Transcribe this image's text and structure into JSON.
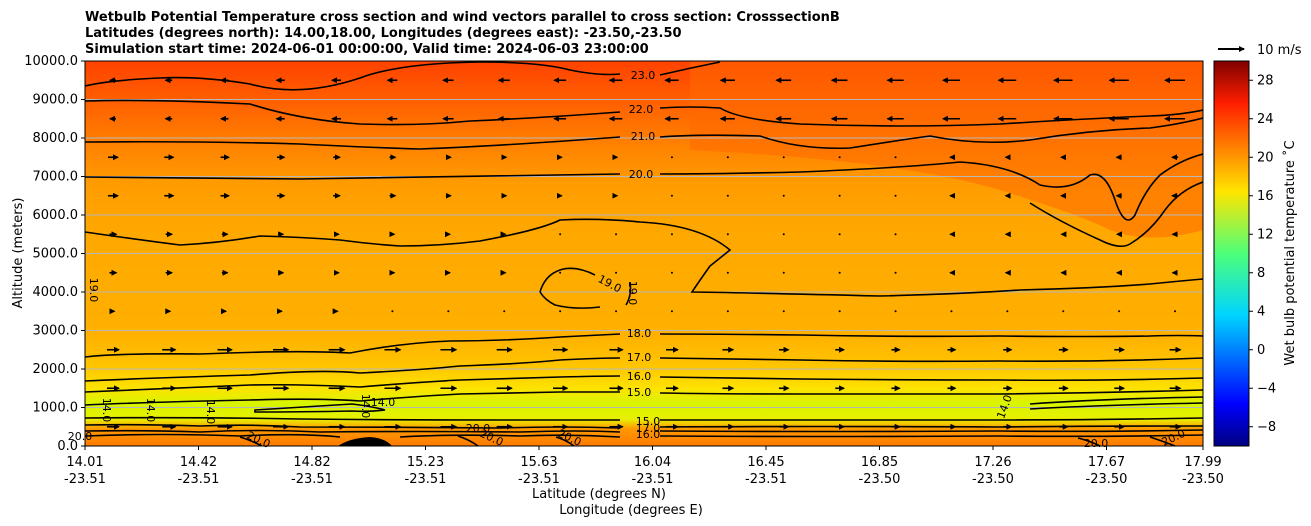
{
  "chart_data": {
    "type": "contour",
    "title_lines": [
      "Wetbulb Potential Temperature cross section and wind vectors parallel to cross section: CrosssectionB",
      "Latitudes (degrees north): 14.00,18.00, Longitudes (degrees east): -23.50,-23.50",
      "Simulation start time: 2024-06-01 00:00:00, Valid time: 2024-06-03 23:00:00"
    ],
    "ylabel": "Altitude (meters)",
    "xlabel_lines": [
      "Latitude (degrees N)",
      "Longitude (degrees E)"
    ],
    "ylim": [
      0,
      10000
    ],
    "y_ticks": [
      "0.0",
      "1000.0",
      "2000.0",
      "3000.0",
      "4000.0",
      "5000.0",
      "6000.0",
      "7000.0",
      "8000.0",
      "9000.0",
      "10000.0"
    ],
    "x_ticks": [
      {
        "lat": "14.01",
        "lon": "-23.51"
      },
      {
        "lat": "14.42",
        "lon": "-23.51"
      },
      {
        "lat": "14.82",
        "lon": "-23.51"
      },
      {
        "lat": "15.23",
        "lon": "-23.51"
      },
      {
        "lat": "15.63",
        "lon": "-23.51"
      },
      {
        "lat": "16.04",
        "lon": "-23.51"
      },
      {
        "lat": "16.45",
        "lon": "-23.51"
      },
      {
        "lat": "16.85",
        "lon": "-23.50"
      },
      {
        "lat": "17.26",
        "lon": "-23.50"
      },
      {
        "lat": "17.67",
        "lon": "-23.50"
      },
      {
        "lat": "17.99",
        "lon": "-23.50"
      }
    ],
    "colorbar": {
      "label": "Wet bulb potential temperature ˚C",
      "range": [
        -10,
        30
      ],
      "ticks": [
        "28",
        "24",
        "20",
        "16",
        "12",
        "8",
        "4",
        "0",
        "−4",
        "−8"
      ],
      "tick_values": [
        28,
        24,
        20,
        16,
        12,
        8,
        4,
        0,
        -4,
        -8
      ],
      "colormap": "jet"
    },
    "wind_key": "10 m/s",
    "contour_levels": [
      {
        "value": "23.0",
        "alt": 9650
      },
      {
        "value": "22.0",
        "alt": 8700
      },
      {
        "value": "21.0",
        "alt": 7850
      },
      {
        "value": "20.0",
        "alt": 7000
      },
      {
        "value": "19.0",
        "alt": 4200
      },
      {
        "value": "18.0",
        "alt": 2950
      },
      {
        "value": "17.0",
        "alt": 2300
      },
      {
        "value": "16.0",
        "alt": 1800
      },
      {
        "value": "15.0",
        "alt": 1400
      },
      {
        "value": "14.0",
        "alt": 1000
      }
    ],
    "inline_labels": [
      "23.0",
      "22.0",
      "21.0",
      "20.0",
      "19.0",
      "19.0",
      "19.0",
      "18.0",
      "17.0",
      "16.0",
      "15.0",
      "14.0",
      "14.0",
      "14.0",
      "14.0",
      "14.0",
      "14.0",
      "15.0",
      "17.0",
      "16.0",
      "20.0",
      "20.0",
      "20.0",
      "20.0",
      "20.0",
      "20.0",
      "20.0"
    ]
  }
}
